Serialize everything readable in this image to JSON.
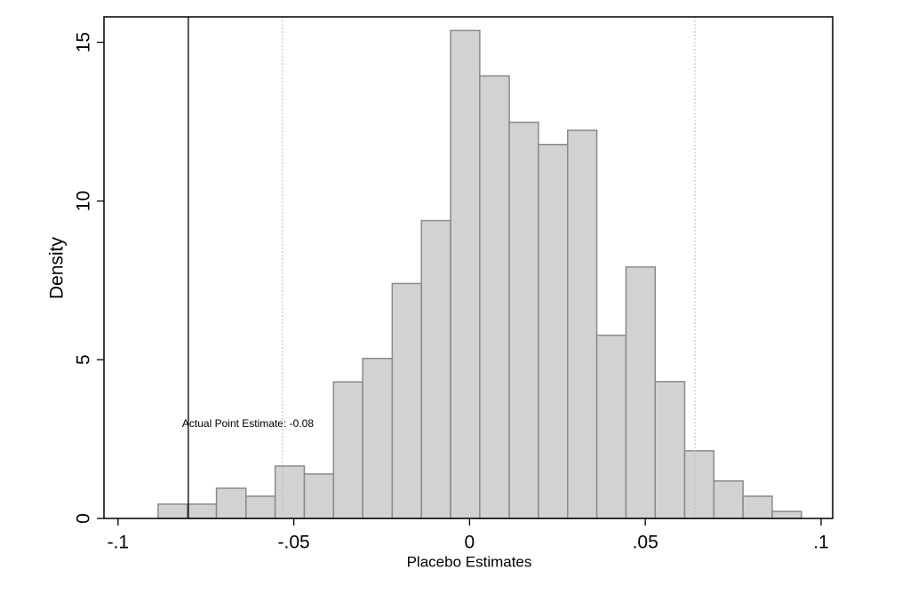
{
  "chart_data": {
    "type": "histogram",
    "bins": [
      -0.0886,
      -0.0803,
      -0.072,
      -0.0636,
      -0.0553,
      -0.047,
      -0.0387,
      -0.0304,
      -0.022,
      -0.0137,
      -0.0054,
      0.0029,
      0.0113,
      0.0196,
      0.0279,
      0.0362,
      0.0445,
      0.0528,
      0.0612,
      0.0695,
      0.0778,
      0.0861,
      0.0944
    ],
    "values": [
      0.45,
      0.45,
      0.95,
      0.7,
      1.65,
      1.4,
      4.3,
      5.04,
      7.4,
      9.38,
      15.37,
      13.94,
      12.48,
      11.78,
      12.23,
      5.77,
      7.92,
      4.31,
      2.13,
      1.18,
      0.7,
      0.22
    ],
    "color": "#d2d2d2",
    "edge_color": "#8a8a8a",
    "xlabel": "Placebo Estimates",
    "ylabel": "Density",
    "xlim": [
      -0.104,
      0.1033
    ],
    "ylim": [
      0,
      15.8
    ],
    "xticks": [
      {
        "value": -0.1,
        "label": "-.1"
      },
      {
        "value": -0.05,
        "label": "-.05"
      },
      0,
      {
        "value": 0.05,
        "label": ".05"
      },
      {
        "value": 0.1,
        "label": ".1"
      }
    ],
    "yticks": [
      0,
      5,
      10,
      15
    ],
    "reference_lines": [
      {
        "value": -0.08,
        "style": "solid",
        "label": "Actual Point Estimate: -0.08"
      },
      {
        "value": -0.0532,
        "style": "dotted"
      },
      {
        "value": 0.0641,
        "style": "dotted"
      }
    ]
  }
}
